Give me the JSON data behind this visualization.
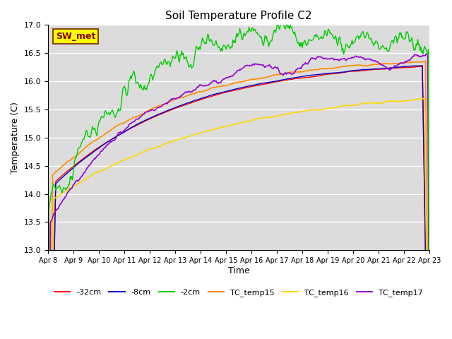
{
  "title": "Soil Temperature Profile C2",
  "xlabel": "Time",
  "ylabel": "Temperature (C)",
  "ylim": [
    13.0,
    17.0
  ],
  "yticks": [
    13.0,
    13.5,
    14.0,
    14.5,
    15.0,
    15.5,
    16.0,
    16.5,
    17.0
  ],
  "xlim_days": [
    0,
    15
  ],
  "x_tick_labels": [
    "Apr 8",
    "Apr 9",
    "Apr 10",
    "Apr 11",
    "Apr 12",
    "Apr 13",
    "Apr 14",
    "Apr 15",
    "Apr 16",
    "Apr 17",
    "Apr 18",
    "Apr 19",
    "Apr 20",
    "Apr 21",
    "Apr 22",
    "Apr 23"
  ],
  "series": {
    "neg32cm": {
      "color": "#ff0000",
      "label": "-32cm"
    },
    "neg8cm": {
      "color": "#0000cc",
      "label": "-8cm"
    },
    "neg2cm": {
      "color": "#00cc00",
      "label": "-2cm"
    },
    "TC_temp15": {
      "color": "#ff8c00",
      "label": "TC_temp15"
    },
    "TC_temp16": {
      "color": "#ffd700",
      "label": "TC_temp16"
    },
    "TC_temp17": {
      "color": "#9400d3",
      "label": "TC_temp17"
    }
  },
  "annotation": {
    "text": "SW_met",
    "facecolor": "#ffff00",
    "edgecolor": "#8b4513",
    "textcolor": "#8b0000",
    "fontsize": 9
  },
  "bg_color": "#dcdcdc",
  "fig_bg": "#ffffff"
}
